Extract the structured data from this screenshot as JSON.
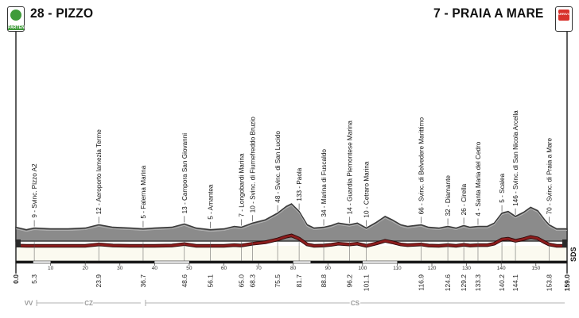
{
  "start": {
    "label": "28 - PIZZO",
    "badge": "PARTENZA"
  },
  "finish": {
    "label": "7 - PRAIA A MARE",
    "badge": "ARRIVO"
  },
  "colors": {
    "profile_fill": "#8b8b8b",
    "profile_top": "#3c3c3c",
    "road_red": "#8c1c1c",
    "stripe": "#1a1a1a",
    "ground": "#fbfaf0"
  },
  "chart_data": {
    "type": "area",
    "x_unit": "km",
    "xlim": [
      0,
      159.0
    ],
    "x_ticks": [
      10,
      20,
      30,
      40,
      50,
      60,
      70,
      80,
      90,
      100,
      110,
      120,
      130,
      140,
      150
    ],
    "elevation_profile": [
      {
        "x": 0,
        "y": 9
      },
      {
        "x": 3,
        "y": 6
      },
      {
        "x": 5.3,
        "y": 8
      },
      {
        "x": 10,
        "y": 7
      },
      {
        "x": 15,
        "y": 7
      },
      {
        "x": 20,
        "y": 8
      },
      {
        "x": 23.9,
        "y": 12
      },
      {
        "x": 28,
        "y": 9
      },
      {
        "x": 33,
        "y": 8
      },
      {
        "x": 36.7,
        "y": 7
      },
      {
        "x": 40,
        "y": 8
      },
      {
        "x": 45,
        "y": 9
      },
      {
        "x": 48.6,
        "y": 13
      },
      {
        "x": 52,
        "y": 8
      },
      {
        "x": 56.1,
        "y": 6
      },
      {
        "x": 60,
        "y": 7
      },
      {
        "x": 63,
        "y": 10
      },
      {
        "x": 65.0,
        "y": 9
      },
      {
        "x": 68.3,
        "y": 14
      },
      {
        "x": 72,
        "y": 18
      },
      {
        "x": 75.5,
        "y": 26
      },
      {
        "x": 78,
        "y": 34
      },
      {
        "x": 79.5,
        "y": 37
      },
      {
        "x": 81.7,
        "y": 28
      },
      {
        "x": 84,
        "y": 12
      },
      {
        "x": 86,
        "y": 8
      },
      {
        "x": 88.8,
        "y": 9
      },
      {
        "x": 91,
        "y": 11
      },
      {
        "x": 93,
        "y": 14
      },
      {
        "x": 96.2,
        "y": 12
      },
      {
        "x": 98.5,
        "y": 14
      },
      {
        "x": 101.1,
        "y": 8
      },
      {
        "x": 104,
        "y": 15
      },
      {
        "x": 106.5,
        "y": 22
      },
      {
        "x": 108.5,
        "y": 18
      },
      {
        "x": 111,
        "y": 12
      },
      {
        "x": 113,
        "y": 10
      },
      {
        "x": 116.9,
        "y": 12
      },
      {
        "x": 119,
        "y": 9
      },
      {
        "x": 122,
        "y": 8
      },
      {
        "x": 124.6,
        "y": 10
      },
      {
        "x": 127,
        "y": 8
      },
      {
        "x": 129.2,
        "y": 11
      },
      {
        "x": 131,
        "y": 9
      },
      {
        "x": 133.3,
        "y": 10
      },
      {
        "x": 136,
        "y": 10
      },
      {
        "x": 138,
        "y": 14
      },
      {
        "x": 140.2,
        "y": 26
      },
      {
        "x": 142,
        "y": 28
      },
      {
        "x": 144.1,
        "y": 22
      },
      {
        "x": 146.5,
        "y": 27
      },
      {
        "x": 148.5,
        "y": 33
      },
      {
        "x": 150.5,
        "y": 29
      },
      {
        "x": 152.5,
        "y": 18
      },
      {
        "x": 153.8,
        "y": 12
      },
      {
        "x": 156,
        "y": 7
      },
      {
        "x": 159.0,
        "y": 7
      }
    ],
    "waypoints": [
      {
        "label": "9 - Svinc. Pizzo A2",
        "km": 5.3
      },
      {
        "label": "12 - Aeroporto lamezia Terme",
        "km": 23.9
      },
      {
        "label": "5 - Falerna Marina",
        "km": 36.7
      },
      {
        "label": "13 - Campora San Giovanni",
        "km": 48.6
      },
      {
        "label": "5 - Amantea",
        "km": 56.1
      },
      {
        "label": "7 - Longobardi Marina",
        "km": 65.0
      },
      {
        "label": "10 - Svinc. di Fiumefreddo Bruzio",
        "km": 68.3
      },
      {
        "label": "48 - Svinc. di San Lucido",
        "km": 75.5
      },
      {
        "label": "133 - Paola",
        "km": 81.7
      },
      {
        "label": "34 - Marina di Fuscaldo",
        "km": 88.8
      },
      {
        "label": "14 - Guardia Piemontese Marina",
        "km": 96.2
      },
      {
        "label": "10 - Cetraro Marina",
        "km": 101.1
      },
      {
        "label": "66 - Svinc. di Belvedere Marittimo",
        "km": 116.9
      },
      {
        "label": "32 - Diamante",
        "km": 124.6
      },
      {
        "label": "26 - Cirella",
        "km": 129.2
      },
      {
        "label": "4 - Santa Maria del Cedro",
        "km": 133.3
      },
      {
        "label": "5 - Scalea",
        "km": 140.2
      },
      {
        "label": "146 - Svinc. di San Nicola Arcella",
        "km": 144.1
      },
      {
        "label": "70 - Svinc. di Praia a Mare",
        "km": 153.8
      }
    ],
    "distance_labels": [
      "0.0",
      "5.3",
      "23.9",
      "36.7",
      "48.6",
      "56.1",
      "65.0",
      "68.3",
      "75.5",
      "81.7",
      "88.8",
      "96.2",
      "101.1",
      "116.9",
      "124.6",
      "129.2",
      "133.3",
      "140.2",
      "144.1",
      "153.8",
      "159.0"
    ],
    "provinces": [
      {
        "code": "VV",
        "from": 0,
        "to": 5.3
      },
      {
        "code": "CZ",
        "from": 5.3,
        "to": 36.7
      },
      {
        "code": "CS",
        "from": 36.7,
        "to": 159.0
      }
    ],
    "logo": "SDS"
  }
}
